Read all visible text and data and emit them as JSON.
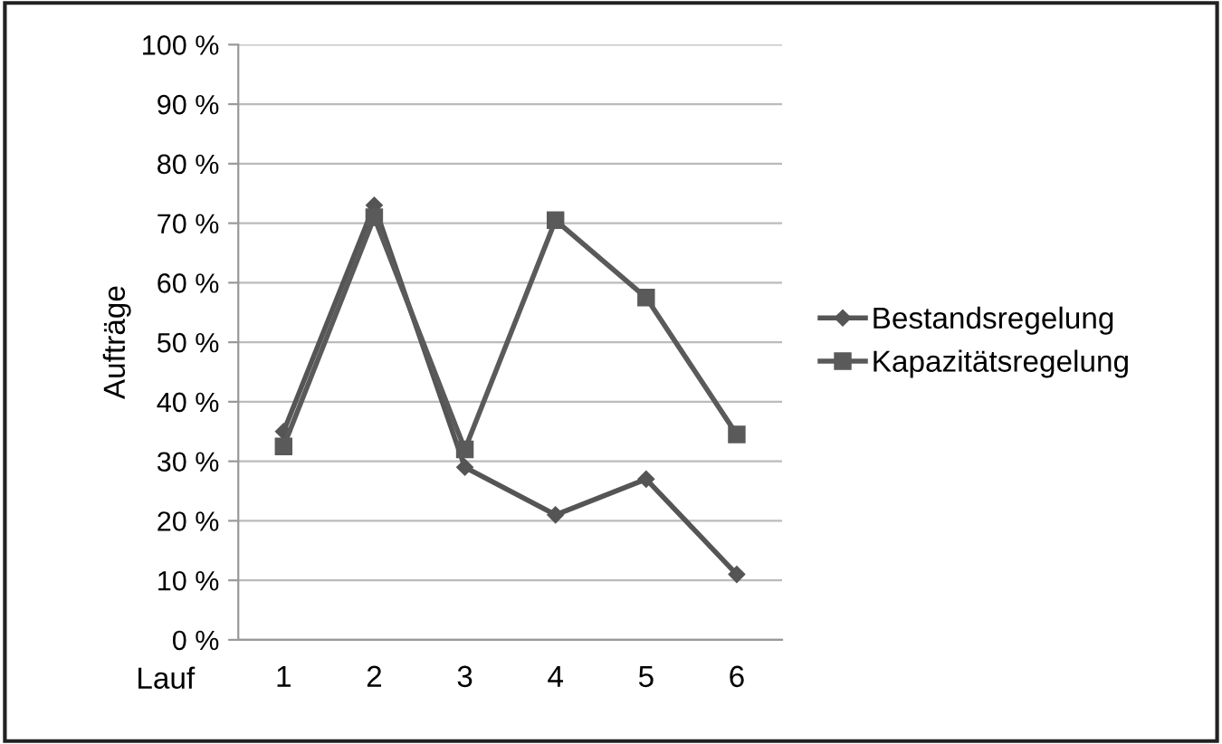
{
  "chart_data": {
    "type": "line",
    "ylabel": "Aufträge",
    "xlabel": "Lauf",
    "categories": [
      "1",
      "2",
      "3",
      "4",
      "5",
      "6"
    ],
    "series": [
      {
        "name": "Bestandsregelung",
        "color": "#555555",
        "marker": "diamond",
        "values": [
          35,
          73,
          29,
          21,
          27,
          11
        ]
      },
      {
        "name": "Kapazitätsregelung",
        "color": "#5a5a5a",
        "marker": "square",
        "values": [
          32.5,
          71,
          32,
          70.5,
          57.5,
          34.5
        ]
      }
    ],
    "ylim": [
      0,
      100
    ],
    "yticks": [
      {
        "value": 0,
        "label": "0 %"
      },
      {
        "value": 10,
        "label": "10 %"
      },
      {
        "value": 20,
        "label": "20 %"
      },
      {
        "value": 30,
        "label": "30 %"
      },
      {
        "value": 40,
        "label": "40 %"
      },
      {
        "value": 50,
        "label": "50 %"
      },
      {
        "value": 60,
        "label": "60 %"
      },
      {
        "value": 70,
        "label": "70 %"
      },
      {
        "value": 80,
        "label": "80 %"
      },
      {
        "value": 90,
        "label": "90 %"
      },
      {
        "value": 100,
        "label": "100 %"
      }
    ],
    "grid": "y",
    "legend": "right",
    "line_style": "solid"
  }
}
